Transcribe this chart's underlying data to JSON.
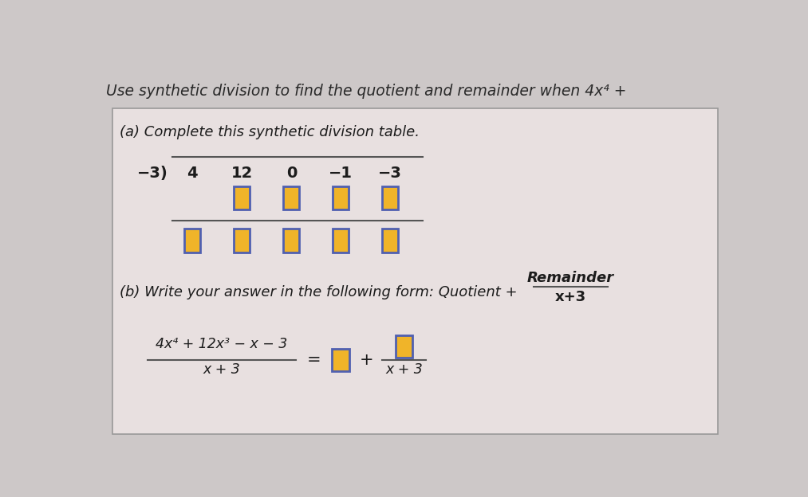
{
  "bg_outer": "#cdc8c8",
  "bg_inner": "#e8e0e0",
  "title_text": "Use synthetic division to find the quotient and remainder when 4x⁴ +",
  "part_a_label": "(a) Complete this synthetic division table.",
  "part_b_label": "(b) Write your answer in the following form: Quotient +",
  "remainder_label": "Remainder",
  "denom_label": "x+3",
  "divisor": "−3)",
  "coeffs": [
    "4",
    "12",
    "0",
    "−1",
    "−3"
  ],
  "fraction_num": "4x⁴ + 12x³ − x − 3",
  "fraction_den": "x + 3",
  "equals_sign": "=",
  "plus_sign": "+",
  "box_fill": "#f0b429",
  "box_border": "#5060b0",
  "text_dark": "#1c1c1c",
  "text_title": "#2a2a2a",
  "line_color": "#555555"
}
